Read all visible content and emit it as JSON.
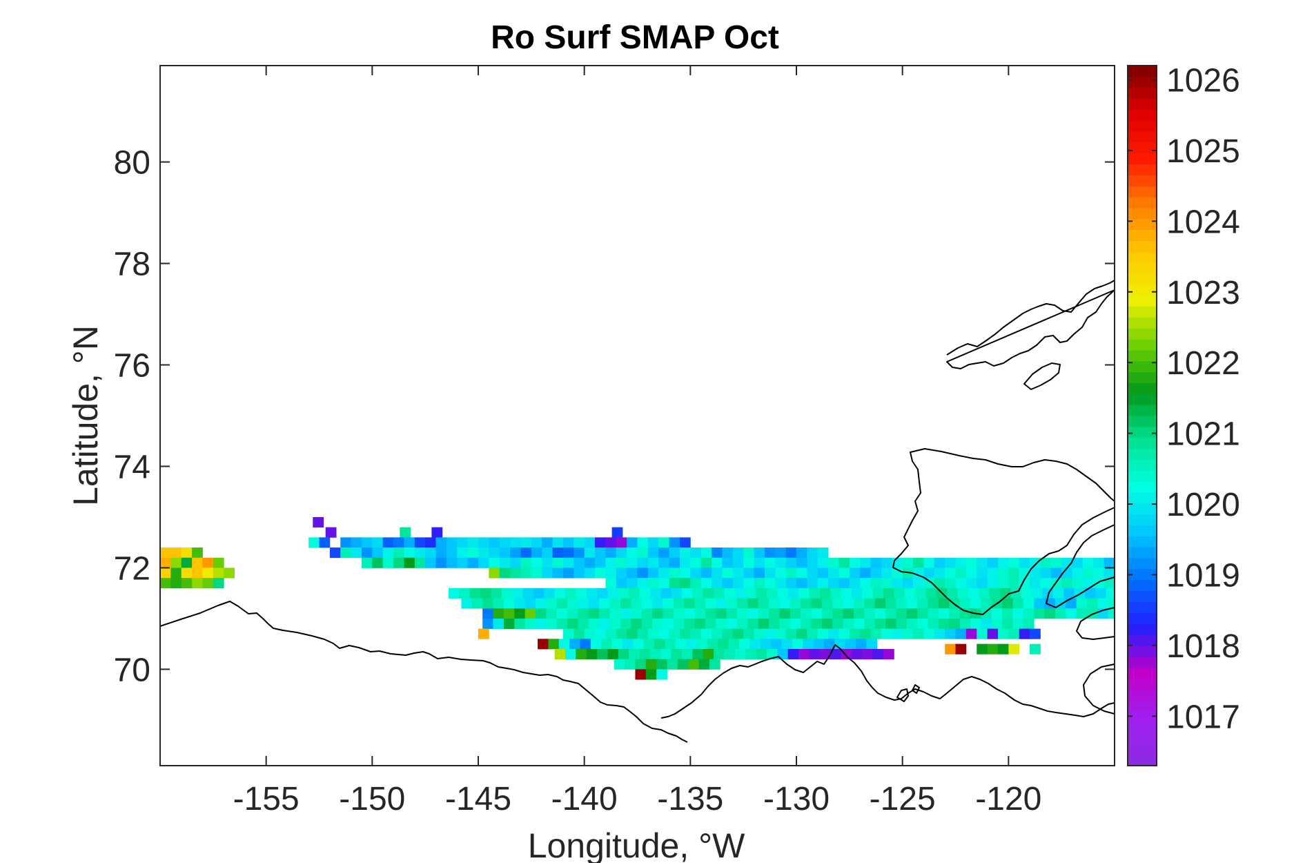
{
  "chart_data": {
    "type": "heatmap",
    "title": "Ro Surf SMAP Oct",
    "xlabel": "Longitude, °W",
    "ylabel": "Latitude, °N",
    "xlim": [
      -160,
      -115
    ],
    "ylim": [
      68.1,
      81.9
    ],
    "xticks": [
      -155,
      -150,
      -145,
      -140,
      -135,
      -130,
      -125,
      -120
    ],
    "yticks": [
      70,
      72,
      74,
      76,
      78,
      80
    ],
    "colorbar": {
      "range": [
        1016.3,
        1026.2
      ],
      "ticks": [
        1017,
        1018,
        1019,
        1020,
        1021,
        1022,
        1023,
        1024,
        1025,
        1026
      ],
      "colormap": [
        "#8a2be2",
        "#a020f0",
        "#c000c8",
        "#2020ff",
        "#0070ff",
        "#00c8ff",
        "#00ffe0",
        "#00e090",
        "#009a1a",
        "#6cd000",
        "#f0f000",
        "#ffc800",
        "#ff8000",
        "#ff1a00",
        "#e00000",
        "#7a0000"
      ]
    },
    "cell_size": {
      "lon": 0.5,
      "lat": 0.2
    },
    "rows": [
      {
        "lat": 72.9,
        "lon_start": -152.8,
        "values": [
          1018
        ]
      },
      {
        "lat": 72.7,
        "lon_start": -152.2,
        "values": [
          1018,
          null,
          null,
          null,
          null,
          null,
          null,
          1020.8,
          null,
          null,
          1018.2,
          null,
          null,
          null,
          null,
          null,
          null,
          null,
          null,
          null,
          null,
          null,
          null,
          null,
          null,
          null,
          null,
          1018.5
        ]
      },
      {
        "lat": 72.5,
        "lon_start": -153.0,
        "values": [
          1020.3,
          1018.8,
          null,
          1019.2,
          1019.4,
          1019.6,
          1019.8,
          1018.8,
          1019.0,
          1019.4,
          1018.6,
          1018.4,
          1019.4,
          1019.6,
          1019.8,
          1020.0,
          1019.8,
          1019.6,
          1019.8,
          1019.9,
          1020.0,
          1019.8,
          1019.4,
          1019.9,
          1019.6,
          1020.0,
          1019.8,
          1018.2,
          1018.0,
          1017.8,
          1019.4,
          1020.2,
          1019.8,
          1020.4,
          1019.2,
          1018.6
        ]
      },
      {
        "lat": 72.3,
        "lon_start": -160.0,
        "values": [
          1023.6,
          1023.6,
          1023.2,
          1022.0,
          null,
          null,
          null,
          null,
          null,
          null,
          null,
          null,
          null,
          null,
          null,
          null,
          1018.6,
          1020.6,
          1020.0,
          1019.2,
          1019.6,
          1020.1,
          1020.6,
          1020.2,
          1020.0,
          1019.8,
          1019.4,
          1019.6,
          1020.1,
          1020.3,
          1020.0,
          1019.8,
          1019.6,
          1019.3,
          1018.9,
          1019.4,
          1019.7,
          1018.8,
          1018.9,
          1019.2,
          1020.0,
          1019.6,
          1019.4,
          1019.8,
          1020.2,
          1020.4,
          1019.6,
          1019.3,
          1019.7,
          1020.1,
          1019.9,
          1020.2,
          1019.1,
          1019.5,
          1019.8,
          1020.4,
          1019.6,
          1019.2,
          1019.3,
          1019.0,
          1019.4,
          1019.8,
          1020.0
        ]
      },
      {
        "lat": 72.1,
        "lon_start": -160.0,
        "values": [
          1023.8,
          1022.4,
          1021.4,
          1023.6,
          1024.0,
          1022.2,
          null,
          null,
          null,
          null,
          null,
          null,
          null,
          null,
          null,
          null,
          null,
          null,
          null,
          1020.6,
          1021.2,
          1020.4,
          1021.0,
          1021.6,
          1020.8,
          1019.6,
          1019.2,
          1019.5,
          1019.7,
          1019.4,
          1019.8,
          1020.2,
          1020.0,
          1019.8,
          1020.5,
          1020.2,
          1019.9,
          1020.4,
          1020.0,
          1019.6,
          1019.4,
          1019.6,
          1020.1,
          1020.4,
          1020.1,
          1019.8,
          1020.0,
          1019.6,
          1019.4,
          1020.0,
          1020.3,
          1020.8,
          1020.2,
          1019.6,
          1019.8,
          1020.3,
          1019.9,
          1020.2,
          1020.0,
          1019.7,
          1019.5,
          1019.8,
          1020.1,
          1020.4,
          1020.8,
          1020.2,
          1020.0,
          1019.6,
          1019.8,
          1020.1,
          1020.4,
          1020.8,
          1020.2,
          1019.7,
          1019.9,
          1020.1,
          1020.3,
          1020.0,
          1019.7,
          1020.1,
          1020.3,
          1019.9,
          1020.1,
          1020.5,
          1020.4,
          1020.0,
          1019.8,
          1020.2,
          1020.0,
          1019.5,
          1018.2,
          1020.3,
          1019.6,
          1018.8,
          1020.0
        ]
      },
      {
        "lat": 71.9,
        "lon_start": -160.0,
        "values": [
          1023.4,
          1021.8,
          1023.2,
          1023.6,
          1023.0,
          1022.6,
          1022.4,
          null,
          null,
          null,
          null,
          null,
          null,
          null,
          null,
          null,
          null,
          null,
          null,
          null,
          null,
          null,
          null,
          null,
          null,
          null,
          null,
          null,
          null,
          null,
          null,
          1022.4,
          1021.0,
          1020.8,
          1020.6,
          1020.4,
          1019.8,
          1019.5,
          1019.3,
          1019.6,
          1019.9,
          1020.3,
          1020.1,
          1019.7,
          1019.5,
          1019.2,
          1019.6,
          1020.0,
          1020.4,
          1020.2,
          1019.8,
          1019.5,
          1019.9,
          1020.3,
          1020.0,
          1019.7,
          1019.4,
          1019.9,
          1020.2,
          1020.5,
          1020.2,
          1019.8,
          1019.6,
          1020.0,
          1020.3,
          1019.7,
          1019.4,
          1019.7,
          1020.0,
          1020.3,
          1020.6,
          1020.1,
          1019.8,
          1020.0,
          1020.3,
          1020.5,
          1020.2,
          1019.9,
          1020.1,
          1020.4,
          1020.6,
          1020.3,
          1020.0,
          1019.8,
          1019.5,
          1019.8,
          1020.1,
          1020.4,
          1020.2,
          1019.9,
          1020.1,
          1020.3,
          1020.6,
          1020.4,
          1020.2,
          1019.9,
          1020.2,
          1020.4
        ]
      },
      {
        "lat": 71.7,
        "lon_start": -160.0,
        "values": [
          1022.0,
          1021.8,
          1022.0,
          1022.4,
          1022.2,
          1021.0,
          null,
          null,
          null,
          null,
          null,
          null,
          null,
          null,
          null,
          null,
          null,
          null,
          null,
          null,
          null,
          null,
          null,
          null,
          null,
          null,
          null,
          null,
          null,
          null,
          null,
          null,
          null,
          null,
          null,
          null,
          null,
          null,
          null,
          null,
          null,
          null,
          1020.3,
          1019.6,
          1019.8,
          1020.1,
          1020.4,
          1020.2,
          1020.9,
          1021.0,
          1020.6,
          1020.2,
          1019.9,
          1019.6,
          1019.9,
          1020.2,
          1020.5,
          1020.3,
          1020.0,
          1019.7,
          1019.5,
          1019.8,
          1020.1,
          1019.8,
          1019.6,
          1019.9,
          1020.2,
          1020.5,
          1020.4,
          1020.0,
          1019.8,
          1020.1,
          1020.4,
          1020.7,
          1020.5,
          1020.2,
          1020.0,
          1019.8,
          1020.1,
          1020.4,
          1020.6,
          1020.3,
          1020.0,
          1020.2,
          1020.4,
          1020.6,
          1020.4,
          1020.1,
          1020.3,
          1020.5,
          1020.8,
          1020.6,
          1020.4,
          1020.1,
          1020.3,
          1020.5,
          1020.7,
          1020.4,
          1019.8,
          1020.2,
          1020.6,
          1020.4,
          1020.8,
          1021.2,
          1020.6,
          1020.2,
          1020.4,
          1021.6,
          1020.6,
          1022.0
        ]
      },
      {
        "lat": 71.5,
        "lon_start": -146.4,
        "values": [
          1020.2,
          1020.5,
          1020.9,
          1021.0,
          1020.8,
          1020.4,
          1020.1,
          1019.8,
          1019.6,
          1019.9,
          1020.2,
          1020.5,
          1020.3,
          1020.0,
          1019.8,
          1020.1,
          1020.4,
          1020.6,
          1020.3,
          1020.0,
          1019.7,
          1019.9,
          1020.2,
          1020.5,
          1020.8,
          1020.6,
          1020.3,
          1020.1,
          1020.4,
          1020.7,
          1020.5,
          1020.2,
          1020.0,
          1020.3,
          1020.6,
          1020.8,
          1020.5,
          1020.2,
          1020.0,
          1020.3,
          1020.6,
          1020.9,
          1020.6,
          1020.3,
          1020.5,
          1020.8,
          1021.0,
          1020.7,
          1020.4,
          1020.2,
          1020.5,
          1020.8,
          1021.0,
          1020.6,
          1020.3,
          1020.1,
          1019.8,
          1020.1,
          1019.6,
          1020.0,
          1019.6,
          1019.8,
          1020.2,
          1020.6,
          1020.2,
          1019.8
        ]
      },
      {
        "lat": 71.3,
        "lon_start": -145.8,
        "values": [
          1020.1,
          1020.6,
          1020.9,
          1020.6,
          1020.3,
          1020.0,
          1019.8,
          1020.1,
          1020.4,
          1020.7,
          1020.4,
          1020.1,
          1019.9,
          1020.2,
          1020.5,
          1020.8,
          1020.5,
          1020.2,
          1020.0,
          1020.3,
          1020.6,
          1020.9,
          1020.6,
          1020.3,
          1020.1,
          1020.4,
          1020.7,
          1021.0,
          1020.7,
          1020.4,
          1020.2,
          1020.5,
          1020.8,
          1021.0,
          1020.7,
          1020.4,
          1020.2,
          1020.5,
          1020.8,
          1021.1,
          1020.8,
          1020.5,
          1020.3,
          1020.6,
          1020.9,
          1021.1,
          1020.8,
          1020.5,
          1020.3,
          1020.6,
          1020.9,
          1021.1,
          1020.7,
          1020.3,
          1019.6,
          1019.4,
          1019.8,
          1019.4,
          1020.4,
          1020.6,
          1020.2,
          1020.4,
          1019.8,
          1020.6,
          1020.8
        ]
      },
      {
        "lat": 71.1,
        "lon_start": -144.8,
        "values": [
          1019.0,
          1021.8,
          1022.0,
          1021.6,
          1022.2,
          1021.0,
          1020.6,
          1020.3,
          1020.5,
          1020.8,
          1021.0,
          1020.7,
          1020.4,
          1020.1,
          1020.4,
          1020.7,
          1021.0,
          1020.7,
          1020.4,
          1020.2,
          1020.5,
          1020.8,
          1021.0,
          1020.7,
          1020.4,
          1020.2,
          1020.5,
          1020.8,
          1021.1,
          1020.8,
          1020.5,
          1020.3,
          1020.6,
          1020.9,
          1021.1,
          1020.8,
          1020.5,
          1020.3,
          1020.6,
          1020.9,
          1021.1,
          1020.8,
          1020.5,
          1020.3,
          1020.6,
          1020.9,
          1021.0,
          1020.6,
          1020.3,
          1020.6,
          1020.2,
          1020.5,
          1020.8,
          1021.0,
          1020.6,
          1020.2,
          1020.6,
          1020.6,
          1019.8,
          1020.4,
          1020.8,
          1020.6,
          1020.4,
          1020.6
        ]
      },
      {
        "lat": 70.9,
        "lon_start": -144.8,
        "values": [
          1019.2,
          1020.0,
          1021.4,
          1020.8,
          1020.4,
          1020.1,
          1020.4,
          1020.7,
          1021.0,
          1020.7,
          1020.4,
          1020.1,
          1020.4,
          1020.7,
          1021.0,
          1020.7,
          1020.4,
          1020.2,
          1020.5,
          1020.8,
          1021.0,
          1020.7,
          1020.4,
          1020.2,
          1020.5,
          1020.8,
          1021.1,
          1020.8,
          1020.5,
          1020.3,
          1020.6,
          1020.9,
          1021.1,
          1020.8,
          1020.5,
          1020.3,
          1020.6,
          1020.9,
          1021.1,
          1020.8,
          1020.5,
          1020.3,
          1020.6,
          1020.9,
          1021.0,
          1020.6,
          1020.3,
          1020.0,
          1020.4,
          1020.7,
          1020.4,
          1020.6
        ]
      },
      {
        "lat": 70.7,
        "lon_start": -145.0,
        "values": [
          1023.8,
          null,
          null,
          null,
          null,
          null,
          null,
          null,
          1020.4,
          1020.8,
          1020.4,
          1020.2,
          1020.5,
          1020.8,
          1021.0,
          1020.7,
          1020.4,
          1020.2,
          1020.5,
          1020.8,
          1020.6,
          1020.3,
          1020.5,
          1020.8,
          1021.0,
          1020.7,
          1020.4,
          1020.1,
          1020.4,
          1020.7,
          1021.0,
          1020.6,
          1020.3,
          1020.0,
          1020.3,
          1020.7,
          1020.9,
          1020.6,
          1020.3,
          1020.1,
          1020.4,
          1020.6,
          1020.3,
          1020.0,
          1019.7,
          1019.4,
          1017.8,
          1020.4,
          1018.0,
          1020.4,
          1020.6,
          1018.2,
          1018.6
        ]
      },
      {
        "lat": 70.5,
        "lon_start": -142.2,
        "values": [
          1026.0,
          1021.8,
          1020.2,
          1019.4,
          1019.0,
          1020.2,
          1020.6,
          1020.3,
          1020.0,
          1020.3,
          1020.6,
          1020.9,
          1020.6,
          1020.3,
          1020.1,
          1020.4,
          1020.7,
          1020.9,
          1020.6,
          1020.3,
          1020.0,
          1019.8,
          1019.6,
          1019.9,
          1020.2,
          1019.8,
          1019.6,
          1019.4,
          1019.8,
          1019.6,
          1019.4,
          1019.8
        ]
      },
      {
        "lat": 70.3,
        "lon_start": -141.4,
        "values": [
          1022.6,
          1020.2,
          1021.8,
          1021.6,
          1021.2,
          1021.6,
          1021.0,
          1020.6,
          1020.8,
          1020.6,
          1020.4,
          1020.8,
          1020.6,
          1021.2,
          1021.8,
          1020.8,
          1020.6,
          1020.4,
          1020.6,
          1020.8,
          1020.4,
          1019.6,
          1018.2,
          1017.8,
          1018.0,
          1017.9,
          1018.1,
          1017.8,
          1018.0,
          1017.9,
          1018.1,
          1017.8
        ]
      },
      {
        "lat": 70.1,
        "lon_start": -138.6,
        "values": [
          1020.4,
          1020.6,
          1021.0,
          1021.8,
          1021.2,
          1020.8,
          1021.2,
          1022.0,
          1021.4,
          1020.8
        ]
      },
      {
        "lat": 69.9,
        "lon_start": -137.6,
        "values": [
          1026.0,
          1021.6,
          1020.2
        ]
      },
      {
        "lat": 70.4,
        "lon_start": -123.0,
        "values": [
          1024.0,
          1026.0,
          null,
          1021.6,
          1021.8,
          1021.6,
          1022.8,
          null,
          1020.6
        ]
      }
    ]
  }
}
